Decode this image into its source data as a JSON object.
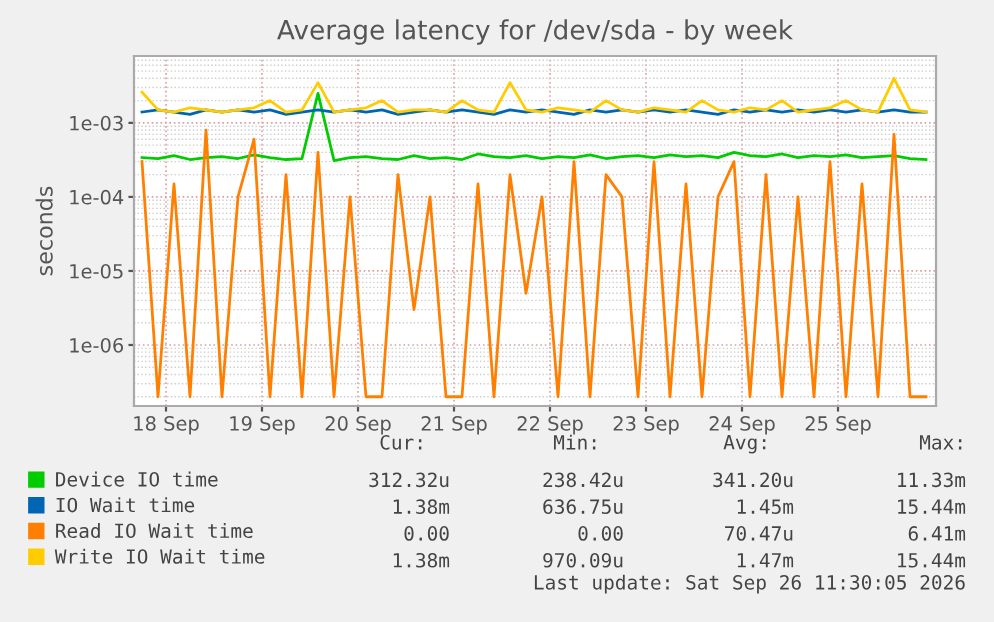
{
  "chart_data": {
    "type": "line",
    "title": "Average latency for /dev/sda - by week",
    "ylabel": "seconds",
    "x": [
      "2026-09-18T06:00",
      "2026-09-18T10:00",
      "2026-09-18T14:00",
      "2026-09-18T18:00",
      "2026-09-18T22:00",
      "2026-09-19T02:00",
      "2026-09-19T06:00",
      "2026-09-19T10:00",
      "2026-09-19T14:00",
      "2026-09-19T18:00",
      "2026-09-19T22:00",
      "2026-09-20T02:00",
      "2026-09-20T06:00",
      "2026-09-20T10:00",
      "2026-09-20T14:00",
      "2026-09-20T18:00",
      "2026-09-20T22:00",
      "2026-09-21T02:00",
      "2026-09-21T06:00",
      "2026-09-21T10:00",
      "2026-09-21T14:00",
      "2026-09-21T18:00",
      "2026-09-21T22:00",
      "2026-09-22T02:00",
      "2026-09-22T06:00",
      "2026-09-22T10:00",
      "2026-09-22T14:00",
      "2026-09-22T18:00",
      "2026-09-22T22:00",
      "2026-09-23T02:00",
      "2026-09-23T06:00",
      "2026-09-23T10:00",
      "2026-09-23T14:00",
      "2026-09-23T18:00",
      "2026-09-23T22:00",
      "2026-09-24T02:00",
      "2026-09-24T06:00",
      "2026-09-24T10:00",
      "2026-09-24T14:00",
      "2026-09-24T18:00",
      "2026-09-24T22:00",
      "2026-09-25T02:00",
      "2026-09-25T06:00",
      "2026-09-25T10:00",
      "2026-09-25T14:00",
      "2026-09-25T18:00",
      "2026-09-25T22:00",
      "2026-09-26T02:00",
      "2026-09-26T06:00",
      "2026-09-26T10:00"
    ],
    "series": [
      {
        "name": "Device IO time",
        "color": "#00cc00",
        "values": [
          0.00034,
          0.00033,
          0.00036,
          0.00032,
          0.00034,
          0.00035,
          0.00033,
          0.00037,
          0.00034,
          0.00032,
          0.00033,
          0.0025,
          0.00031,
          0.00034,
          0.00035,
          0.00033,
          0.00032,
          0.00036,
          0.00033,
          0.00034,
          0.00032,
          0.00038,
          0.00035,
          0.00034,
          0.00036,
          0.00033,
          0.00035,
          0.00034,
          0.00037,
          0.00033,
          0.00035,
          0.00036,
          0.00034,
          0.00037,
          0.00035,
          0.00036,
          0.00034,
          0.0004,
          0.00036,
          0.00035,
          0.00038,
          0.00034,
          0.00036,
          0.00035,
          0.00037,
          0.00034,
          0.00035,
          0.00036,
          0.00033,
          0.00032
        ]
      },
      {
        "name": "IO Wait time",
        "color": "#0066b3",
        "values": [
          0.0014,
          0.0015,
          0.0014,
          0.0013,
          0.0015,
          0.0014,
          0.0015,
          0.0014,
          0.0015,
          0.0013,
          0.0014,
          0.0015,
          0.0014,
          0.0015,
          0.0014,
          0.0015,
          0.0013,
          0.0014,
          0.0015,
          0.0014,
          0.0015,
          0.0014,
          0.0013,
          0.0015,
          0.0014,
          0.0015,
          0.0014,
          0.0013,
          0.0015,
          0.0014,
          0.0015,
          0.0014,
          0.0015,
          0.0014,
          0.0015,
          0.0014,
          0.0013,
          0.0015,
          0.0014,
          0.0015,
          0.0014,
          0.0015,
          0.0014,
          0.0015,
          0.0014,
          0.0015,
          0.0014,
          0.0015,
          0.0014,
          0.0014
        ]
      },
      {
        "name": "Read IO Wait time",
        "color": "#ff8000",
        "values": [
          0.0003,
          2e-07,
          0.00015,
          2e-07,
          0.0008,
          2e-07,
          0.0001,
          0.0006,
          2e-07,
          0.0002,
          2e-07,
          0.0004,
          2e-07,
          0.0001,
          2e-07,
          2e-07,
          0.0002,
          3e-06,
          0.0001,
          2e-07,
          2e-07,
          0.00015,
          2e-07,
          0.0002,
          5e-06,
          0.0001,
          2e-07,
          0.0003,
          2e-07,
          0.0002,
          0.0001,
          2e-07,
          0.0003,
          2e-07,
          0.00015,
          2e-07,
          0.0001,
          0.0003,
          2e-07,
          0.0002,
          2e-07,
          0.0001,
          2e-07,
          0.0003,
          2e-07,
          0.00015,
          2e-07,
          0.0007,
          2e-07,
          2e-07
        ]
      },
      {
        "name": "Write IO Wait time",
        "color": "#ffcc00",
        "values": [
          0.0026,
          0.0015,
          0.0014,
          0.0016,
          0.0015,
          0.0014,
          0.0015,
          0.0016,
          0.002,
          0.0014,
          0.0015,
          0.0035,
          0.0014,
          0.0015,
          0.0016,
          0.002,
          0.0014,
          0.0015,
          0.0015,
          0.0014,
          0.002,
          0.0015,
          0.0014,
          0.0035,
          0.0015,
          0.0014,
          0.0016,
          0.0015,
          0.0014,
          0.002,
          0.0015,
          0.0014,
          0.0016,
          0.0015,
          0.0014,
          0.002,
          0.0015,
          0.0014,
          0.0016,
          0.0015,
          0.002,
          0.0014,
          0.0015,
          0.0016,
          0.002,
          0.0015,
          0.0014,
          0.004,
          0.0015,
          0.0014
        ]
      }
    ],
    "log": true,
    "ylim": [
      1.5e-07,
      0.008
    ],
    "yticks": [
      {
        "value": 1e-06,
        "label": "1e-06"
      },
      {
        "value": 1e-05,
        "label": "1e-05"
      },
      {
        "value": 0.0001,
        "label": "1e-04"
      },
      {
        "value": 0.001,
        "label": "1e-03"
      }
    ],
    "xlim": [
      "2026-09-18T04:00",
      "2026-09-26T12:30"
    ],
    "xticks": [
      {
        "value": "2026-09-18T12:00",
        "label": "18 Sep"
      },
      {
        "value": "2026-09-19T12:00",
        "label": "19 Sep"
      },
      {
        "value": "2026-09-20T12:00",
        "label": "20 Sep"
      },
      {
        "value": "2026-09-21T12:00",
        "label": "21 Sep"
      },
      {
        "value": "2026-09-22T12:00",
        "label": "22 Sep"
      },
      {
        "value": "2026-09-23T12:00",
        "label": "23 Sep"
      },
      {
        "value": "2026-09-24T12:00",
        "label": "24 Sep"
      },
      {
        "value": "2026-09-25T12:00",
        "label": "25 Sep"
      }
    ],
    "grid": true,
    "legend": "bottom left",
    "annotations": [
      "Cur:",
      "Min:",
      "Avg:",
      "Max:",
      "312.32u",
      "238.42u",
      "341.20u",
      "11.33m",
      "1.38m",
      "636.75u",
      "1.45m",
      "15.44m",
      "0.00",
      "0.00",
      "70.47u",
      "6.41m",
      "1.38m",
      "970.09u",
      "1.47m",
      "15.44m",
      "Last update: Sat Sep 26 11:30:05 2026"
    ]
  }
}
